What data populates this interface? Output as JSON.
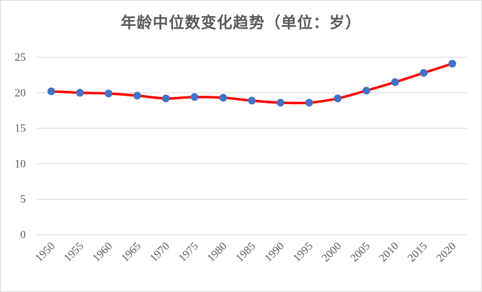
{
  "chart_data": {
    "type": "line",
    "title": "年龄中位数变化趋势（单位：岁）",
    "xlabel": "",
    "ylabel": "",
    "x": [
      "1950",
      "1955",
      "1960",
      "1965",
      "1970",
      "1975",
      "1980",
      "1985",
      "1990",
      "1995",
      "2000",
      "2005",
      "2010",
      "2015",
      "2020"
    ],
    "series": [
      {
        "values": [
          20.2,
          20.0,
          19.9,
          19.6,
          19.2,
          19.4,
          19.3,
          18.9,
          18.6,
          18.6,
          19.2,
          20.3,
          21.5,
          22.8,
          24.1
        ]
      }
    ],
    "ylim": [
      0,
      25
    ],
    "yticks": [
      "0",
      "5",
      "10",
      "15",
      "20",
      "25"
    ],
    "grid": "horizontal",
    "colors": {
      "line": "#ff0000",
      "marker": "#4472c4",
      "grid": "#d9d9d9",
      "text": "#595959"
    }
  }
}
